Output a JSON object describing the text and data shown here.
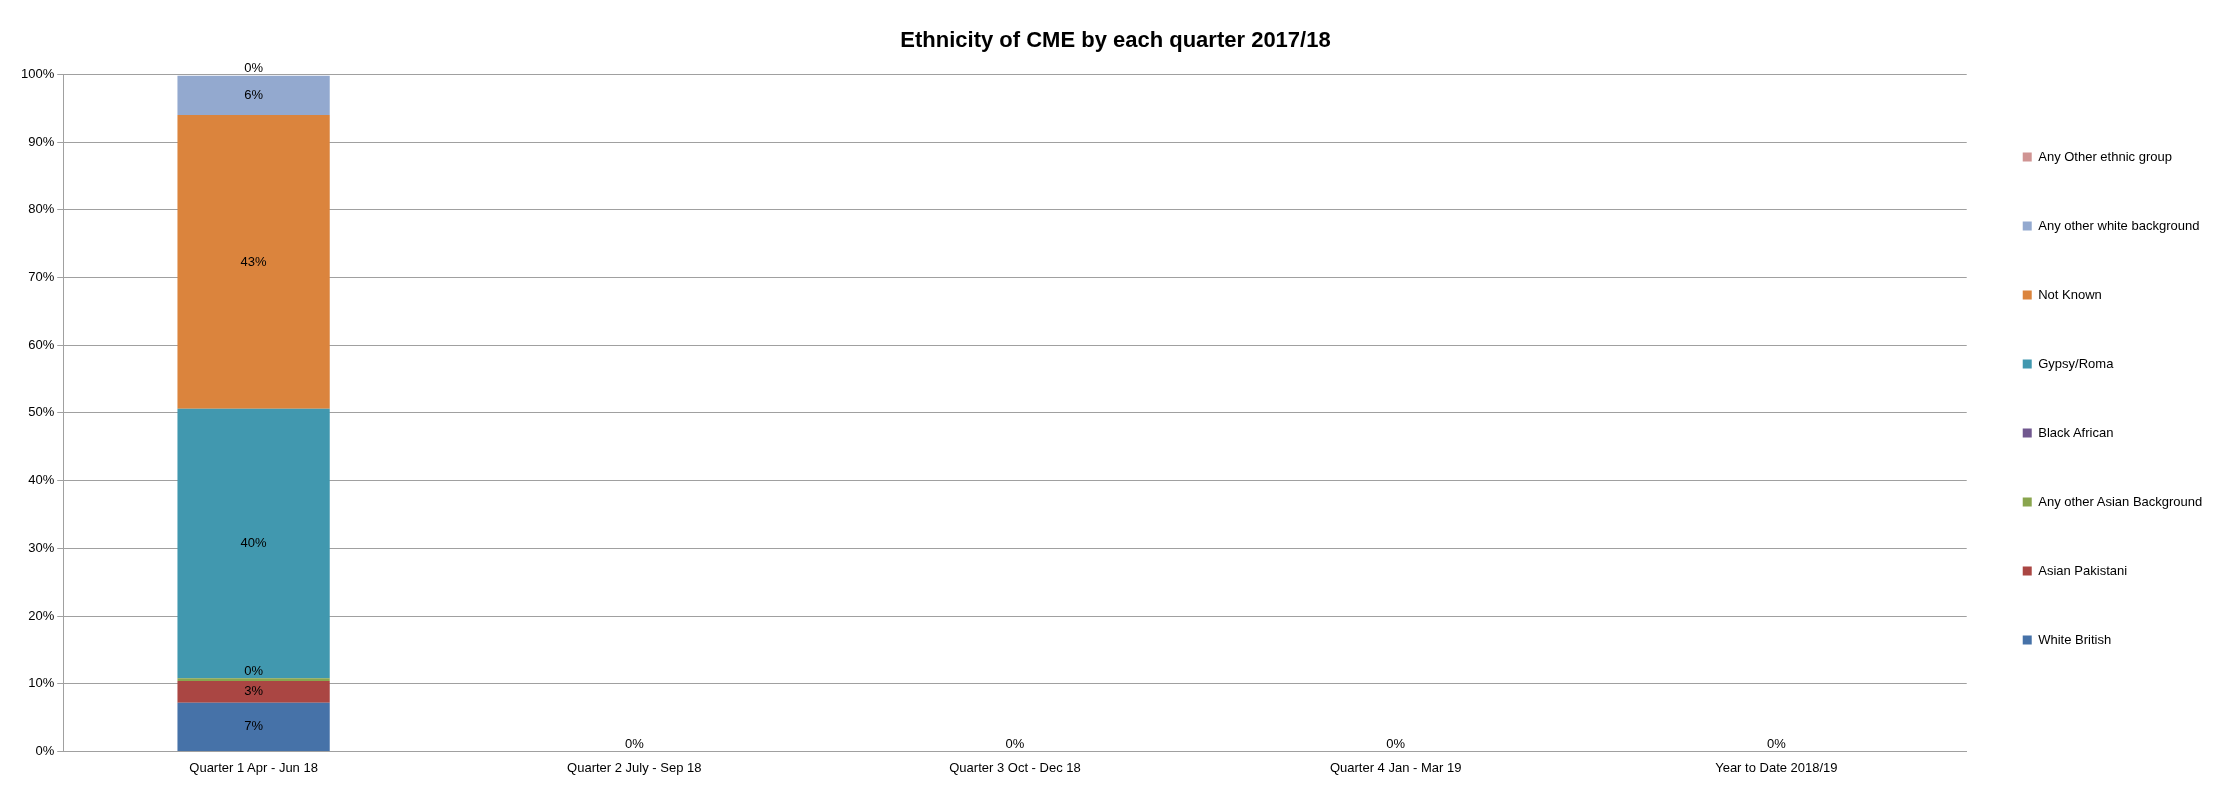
{
  "chart_data": {
    "type": "bar",
    "title": "Ethnicity of CME by each quarter 2017/18",
    "categories": [
      "Quarter 1 Apr - Jun 18",
      "Quarter 2 July - Sep 18",
      "Quarter 3 Oct - Dec 18",
      "Quarter 4 Jan - Mar 19",
      "Year to Date 2018/19"
    ],
    "stacked": true,
    "grid": "y",
    "legend": "right",
    "ylim": [
      0,
      100
    ],
    "yticks": [
      {
        "value": 0,
        "label": "0%"
      },
      {
        "value": 10,
        "label": "10%"
      },
      {
        "value": 20,
        "label": "20%"
      },
      {
        "value": 30,
        "label": "30%"
      },
      {
        "value": 40,
        "label": "40%"
      },
      {
        "value": 50,
        "label": "50%"
      },
      {
        "value": 60,
        "label": "60%"
      },
      {
        "value": 70,
        "label": "70%"
      },
      {
        "value": 80,
        "label": "80%"
      },
      {
        "value": 90,
        "label": "90%"
      },
      {
        "value": 100,
        "label": "100%"
      }
    ],
    "series": [
      {
        "name": "White British",
        "color": "#4672a8",
        "values": [
          7.2,
          0,
          0,
          0,
          0
        ],
        "value_labels": [
          "7%",
          "0%",
          "0%",
          "0%",
          "0%"
        ]
      },
      {
        "name": "Asian Pakistani",
        "color": "#aa4643",
        "values": [
          3.2,
          0,
          0,
          0,
          0
        ],
        "value_labels": [
          "3%",
          null,
          null,
          null,
          null
        ]
      },
      {
        "name": "Any other Asian Background",
        "color": "#89a54e",
        "values": [
          0.4,
          0,
          0,
          0,
          0
        ],
        "value_labels": [
          "0%",
          null,
          null,
          null,
          null
        ]
      },
      {
        "name": "Black African",
        "color": "#71588f",
        "values": [
          0,
          0,
          0,
          0,
          0
        ],
        "value_labels": [
          null,
          null,
          null,
          null,
          null
        ]
      },
      {
        "name": "Gypsy/Roma",
        "color": "#4198af",
        "values": [
          39.8,
          0,
          0,
          0,
          0
        ],
        "value_labels": [
          "40%",
          null,
          null,
          null,
          null
        ]
      },
      {
        "name": "Not Known",
        "color": "#db843d",
        "values": [
          43.4,
          0,
          0,
          0,
          0
        ],
        "value_labels": [
          "43%",
          null,
          null,
          null,
          null
        ]
      },
      {
        "name": "Any other white background",
        "color": "#93a9cf",
        "values": [
          5.8,
          0,
          0,
          0,
          0
        ],
        "value_labels": [
          "6%",
          null,
          null,
          null,
          null
        ]
      },
      {
        "name": "Any Other ethnic group",
        "color": "#d09493",
        "values": [
          0,
          0,
          0,
          0,
          0
        ],
        "value_labels": [
          "0%",
          null,
          null,
          null,
          null
        ]
      }
    ]
  }
}
